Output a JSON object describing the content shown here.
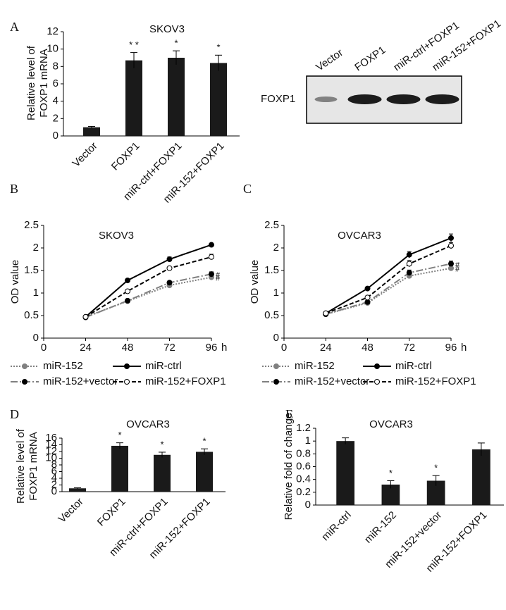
{
  "chart_data": [
    {
      "type": "bar",
      "panel": "A",
      "title": "SKOV3",
      "y_label": [
        "Relative level of",
        "FOXP1 mRNA"
      ],
      "categories": [
        "Vector",
        "FOXP1",
        "miR-ctrl+FOXP1",
        "miR-152+FOXP1"
      ],
      "values": [
        1,
        8.7,
        9.0,
        8.4
      ],
      "errors": [
        0.1,
        0.9,
        0.8,
        0.9
      ],
      "annotations": [
        null,
        "* *",
        "*",
        "*"
      ],
      "color": "#1a1a1a",
      "ylim": [
        0,
        12
      ],
      "yticks": [
        0,
        2,
        4,
        6,
        8,
        10,
        12
      ]
    },
    {
      "type": "blot",
      "lanes": [
        "Vector",
        "FOXP1",
        "miR-ctrl+FOXP1",
        "miR-152+FOXP1"
      ],
      "row_label": "FOXP1"
    },
    {
      "type": "line",
      "panel": "B",
      "title": "SKOV3",
      "y_label": "OD value",
      "x_label": "h",
      "x": [
        24,
        48,
        72,
        96
      ],
      "series": [
        {
          "name": "miR-152",
          "color": "#808080",
          "style": "dotted",
          "marker": "#808080",
          "values": [
            0.47,
            0.82,
            1.17,
            1.35
          ],
          "errors": [
            0.02,
            0.03,
            0.04,
            0.05
          ],
          "end_label": "#"
        },
        {
          "name": "miR-ctrl",
          "color": "#000000",
          "style": "solid",
          "marker": "#000000",
          "values": [
            0.47,
            1.28,
            1.75,
            2.07
          ],
          "errors": [
            0.02,
            0.03,
            0.05,
            0.03
          ]
        },
        {
          "name": "miR-152+vector",
          "color": "#808080",
          "style": "dashdot",
          "marker": "#000000",
          "values": [
            0.46,
            0.83,
            1.23,
            1.42
          ],
          "errors": [
            0.02,
            0.03,
            0.04,
            0.05
          ],
          "end_label": "#"
        },
        {
          "name": "miR-152+FOXP1",
          "color": "#000000",
          "style": "dashed",
          "marker": "#ffffff",
          "values": [
            0.47,
            1.04,
            1.55,
            1.8
          ],
          "errors": [
            0.02,
            0.03,
            0.04,
            0.06
          ]
        }
      ],
      "xlim": [
        0,
        96
      ],
      "xticks": [
        0,
        24,
        48,
        72,
        96
      ],
      "ylim": [
        0,
        2.5
      ],
      "yticks": [
        0,
        0.5,
        1,
        1.5,
        2,
        2.5
      ]
    },
    {
      "type": "line",
      "panel": "C",
      "title": "OVCAR3",
      "y_label": "OD value",
      "x_label": "h",
      "x": [
        24,
        48,
        72,
        96
      ],
      "series": [
        {
          "name": "miR-152",
          "color": "#808080",
          "style": "dotted",
          "marker": "#808080",
          "values": [
            0.53,
            0.78,
            1.38,
            1.55
          ],
          "errors": [
            0.02,
            0.03,
            0.06,
            0.05
          ],
          "end_label": "#"
        },
        {
          "name": "miR-ctrl",
          "color": "#000000",
          "style": "solid",
          "marker": "#000000",
          "values": [
            0.55,
            1.1,
            1.85,
            2.22
          ],
          "errors": [
            0.02,
            0.03,
            0.07,
            0.09
          ]
        },
        {
          "name": "miR-152+vector",
          "color": "#808080",
          "style": "dashdot",
          "marker": "#000000",
          "values": [
            0.53,
            0.8,
            1.45,
            1.65
          ],
          "errors": [
            0.02,
            0.03,
            0.06,
            0.06
          ],
          "end_label": "#"
        },
        {
          "name": "miR-152+FOXP1",
          "color": "#000000",
          "style": "dashed",
          "marker": "#ffffff",
          "values": [
            0.55,
            0.9,
            1.65,
            2.05
          ],
          "errors": [
            0.02,
            0.04,
            0.07,
            0.07
          ]
        }
      ],
      "xlim": [
        0,
        96
      ],
      "xticks": [
        0,
        24,
        48,
        72,
        96
      ],
      "ylim": [
        0,
        2.5
      ],
      "yticks": [
        0,
        0.5,
        1,
        1.5,
        2,
        2.5
      ]
    },
    {
      "type": "bar",
      "panel": "D",
      "title": "OVCAR3",
      "y_label": [
        "Relative level of",
        "FOXP1 mRNA"
      ],
      "categories": [
        "Vector",
        "FOXP1",
        "miR-ctrl+FOXP1",
        "miR-152+FOXP1"
      ],
      "values": [
        1,
        13.7,
        11.0,
        11.9
      ],
      "errors": [
        0.15,
        0.9,
        0.8,
        0.9
      ],
      "annotations": [
        null,
        "*",
        "*",
        "*"
      ],
      "color": "#1a1a1a",
      "ylim": [
        0,
        16
      ],
      "yticks": [
        0,
        2,
        4,
        6,
        8,
        10,
        12,
        14,
        16
      ]
    },
    {
      "type": "bar",
      "panel": "E",
      "title": "OVCAR3",
      "y_label": [
        "Relative fold of change"
      ],
      "categories": [
        "miR-ctrl",
        "miR-152",
        "miR-152+vector",
        "miR-152+FOXP1"
      ],
      "values": [
        1,
        0.32,
        0.38,
        0.87
      ],
      "errors": [
        0.05,
        0.06,
        0.08,
        0.1
      ],
      "annotations": [
        null,
        "*",
        "*",
        null
      ],
      "color": "#1a1a1a",
      "ylim": [
        0,
        1.2
      ],
      "yticks": [
        0,
        0.2,
        0.4,
        0.6,
        0.8,
        1,
        1.2
      ]
    }
  ]
}
